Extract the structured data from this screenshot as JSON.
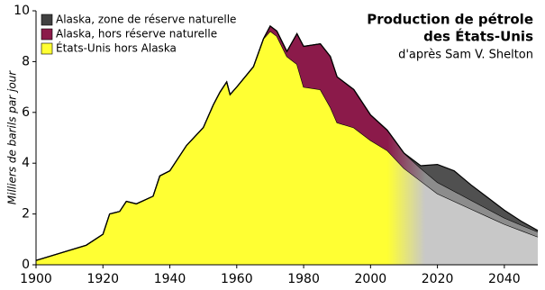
{
  "chart_data": {
    "type": "stacked_area",
    "title_lines": [
      "Production de pétrole",
      "des États-Unis"
    ],
    "subtitle": "d'après Sam V. Shelton",
    "y_label": "Milliers de barils par jour",
    "x": [
      1900,
      1905,
      1910,
      1915,
      1920,
      1922,
      1925,
      1927,
      1930,
      1935,
      1937,
      1940,
      1945,
      1950,
      1953,
      1955,
      1957,
      1958,
      1960,
      1965,
      1968,
      1970,
      1972,
      1975,
      1978,
      1980,
      1985,
      1988,
      1990,
      1995,
      2000,
      2005,
      2010,
      2015,
      2020,
      2025,
      2030,
      2035,
      2040,
      2045,
      2050
    ],
    "series": [
      {
        "name": "États-Unis hors Alaska",
        "color": "#ffff33",
        "projection_color": "#c8c8c8",
        "values": [
          0.17,
          0.37,
          0.57,
          0.77,
          1.2,
          2.0,
          2.1,
          2.5,
          2.4,
          2.7,
          3.5,
          3.7,
          4.7,
          5.4,
          6.3,
          6.8,
          7.2,
          6.7,
          7.0,
          7.8,
          8.9,
          9.2,
          9.0,
          8.2,
          7.9,
          7.0,
          6.9,
          6.2,
          5.6,
          5.4,
          4.9,
          4.5,
          3.8,
          3.3,
          2.8,
          2.5,
          2.2,
          1.9,
          1.6,
          1.35,
          1.1
        ]
      },
      {
        "name": "Alaska, hors réserve naturelle",
        "color": "#8b1a4a",
        "projection_color": "#8c8c8c",
        "values": [
          0,
          0,
          0,
          0,
          0,
          0,
          0,
          0,
          0,
          0,
          0,
          0,
          0,
          0,
          0,
          0,
          0,
          0,
          0,
          0,
          0,
          0.2,
          0.2,
          0.2,
          1.2,
          1.6,
          1.8,
          2.0,
          1.8,
          1.5,
          1.0,
          0.8,
          0.6,
          0.5,
          0.45,
          0.4,
          0.35,
          0.3,
          0.25,
          0.22,
          0.2
        ]
      },
      {
        "name": "Alaska, zone de réserve naturelle",
        "color": "#404040",
        "projection_color": "#505050",
        "values": [
          0,
          0,
          0,
          0,
          0,
          0,
          0,
          0,
          0,
          0,
          0,
          0,
          0,
          0,
          0,
          0,
          0,
          0,
          0,
          0,
          0,
          0,
          0,
          0,
          0,
          0,
          0,
          0,
          0,
          0,
          0,
          0,
          0,
          0.1,
          0.7,
          0.8,
          0.6,
          0.45,
          0.3,
          0.15,
          0.05
        ]
      }
    ],
    "xlim": [
      1900,
      2050
    ],
    "xticks": [
      1900,
      1920,
      1940,
      1960,
      1980,
      2000,
      2020,
      2040
    ],
    "ylim": [
      0,
      10
    ],
    "yticks": [
      0,
      2,
      4,
      6,
      8,
      10
    ],
    "grid": false,
    "legend": "top-left"
  }
}
